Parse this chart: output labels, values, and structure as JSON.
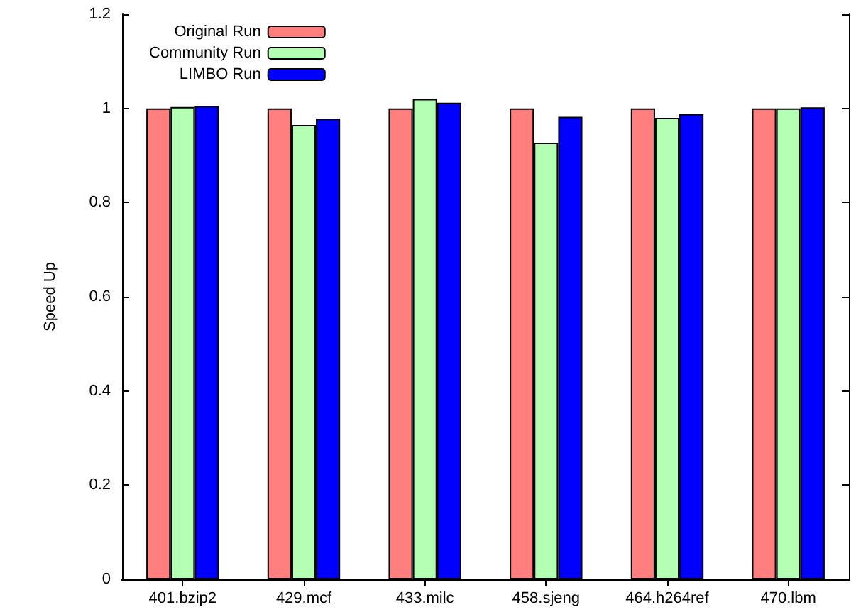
{
  "chart_data": {
    "type": "bar",
    "ylabel": "Speed Up",
    "categories": [
      "401.bzip2",
      "429.mcf",
      "433.milc",
      "458.sjeng",
      "464.h264ref",
      "470.lbm"
    ],
    "series": [
      {
        "name": "Original Run",
        "color": "#ff7f7f",
        "values": [
          1.0,
          1.0,
          1.0,
          1.0,
          1.0,
          1.0
        ]
      },
      {
        "name": "Community Run",
        "color": "#b3ffb3",
        "values": [
          1.003,
          0.965,
          1.02,
          0.927,
          0.98,
          1.0
        ]
      },
      {
        "name": "LIMBO Run",
        "color": "#0000ff",
        "values": [
          1.005,
          0.978,
          1.012,
          0.982,
          0.988,
          1.002
        ]
      }
    ],
    "ylim": [
      0,
      1.2
    ],
    "yticks": [
      0,
      0.2,
      0.4,
      0.6,
      0.8,
      1,
      1.2
    ],
    "grid": false,
    "legend": "top left"
  }
}
